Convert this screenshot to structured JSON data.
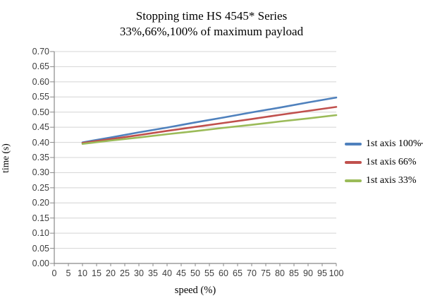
{
  "title": {
    "line1": "Stopping time HS 4545* Series",
    "line2": "33%,66%,100% of maximum payload"
  },
  "axes": {
    "x": {
      "label": "speed (%)",
      "min": 0,
      "max": 100,
      "tick_step": 5,
      "ticks": [
        "0",
        "5",
        "10",
        "15",
        "20",
        "25",
        "30",
        "35",
        "40",
        "45",
        "50",
        "55",
        "60",
        "65",
        "70",
        "75",
        "80",
        "85",
        "90",
        "95",
        "100"
      ]
    },
    "y": {
      "label": "time (s)",
      "min": 0.0,
      "max": 0.7,
      "tick_step": 0.05,
      "ticks": [
        "0.00",
        "0.05",
        "0.10",
        "0.15",
        "0.20",
        "0.25",
        "0.30",
        "0.35",
        "0.40",
        "0.45",
        "0.50",
        "0.55",
        "0.60",
        "0.65",
        "0.70"
      ]
    }
  },
  "legend": {
    "items": [
      {
        "label": "1st axis 100%",
        "color": "#4F81BD"
      },
      {
        "label": "1st axis 66%",
        "color": "#C0504D"
      },
      {
        "label": "1st axis 33%",
        "color": "#9BBB59"
      }
    ]
  },
  "colors": {
    "gridline": "#d4d4d4",
    "axis": "#898989",
    "tick_text": "#3d3d3d",
    "series_blue": "#4F81BD",
    "series_red": "#C0504D",
    "series_green": "#9BBB59"
  },
  "chart_data": {
    "type": "line",
    "title": "Stopping time HS 4545* Series",
    "subtitle": "33%,66%,100% of maximum payload",
    "xlabel": "speed (%)",
    "ylabel": "time (s)",
    "xlim": [
      0,
      100
    ],
    "ylim": [
      0.0,
      0.7
    ],
    "x_tick_step": 5,
    "y_tick_step": 0.05,
    "grid": true,
    "legend_position": "right",
    "x": [
      10,
      20,
      30,
      40,
      50,
      60,
      70,
      80,
      90,
      100
    ],
    "series": [
      {
        "name": "1st axis 100%",
        "color": "#4F81BD",
        "values": [
          0.4,
          0.416,
          0.433,
          0.449,
          0.466,
          0.482,
          0.499,
          0.515,
          0.532,
          0.548
        ]
      },
      {
        "name": "1st axis 66%",
        "color": "#C0504D",
        "values": [
          0.398,
          0.411,
          0.424,
          0.438,
          0.451,
          0.464,
          0.477,
          0.491,
          0.504,
          0.517
        ]
      },
      {
        "name": "1st axis 33%",
        "color": "#9BBB59",
        "values": [
          0.395,
          0.406,
          0.416,
          0.427,
          0.437,
          0.448,
          0.458,
          0.469,
          0.479,
          0.49
        ]
      }
    ]
  }
}
